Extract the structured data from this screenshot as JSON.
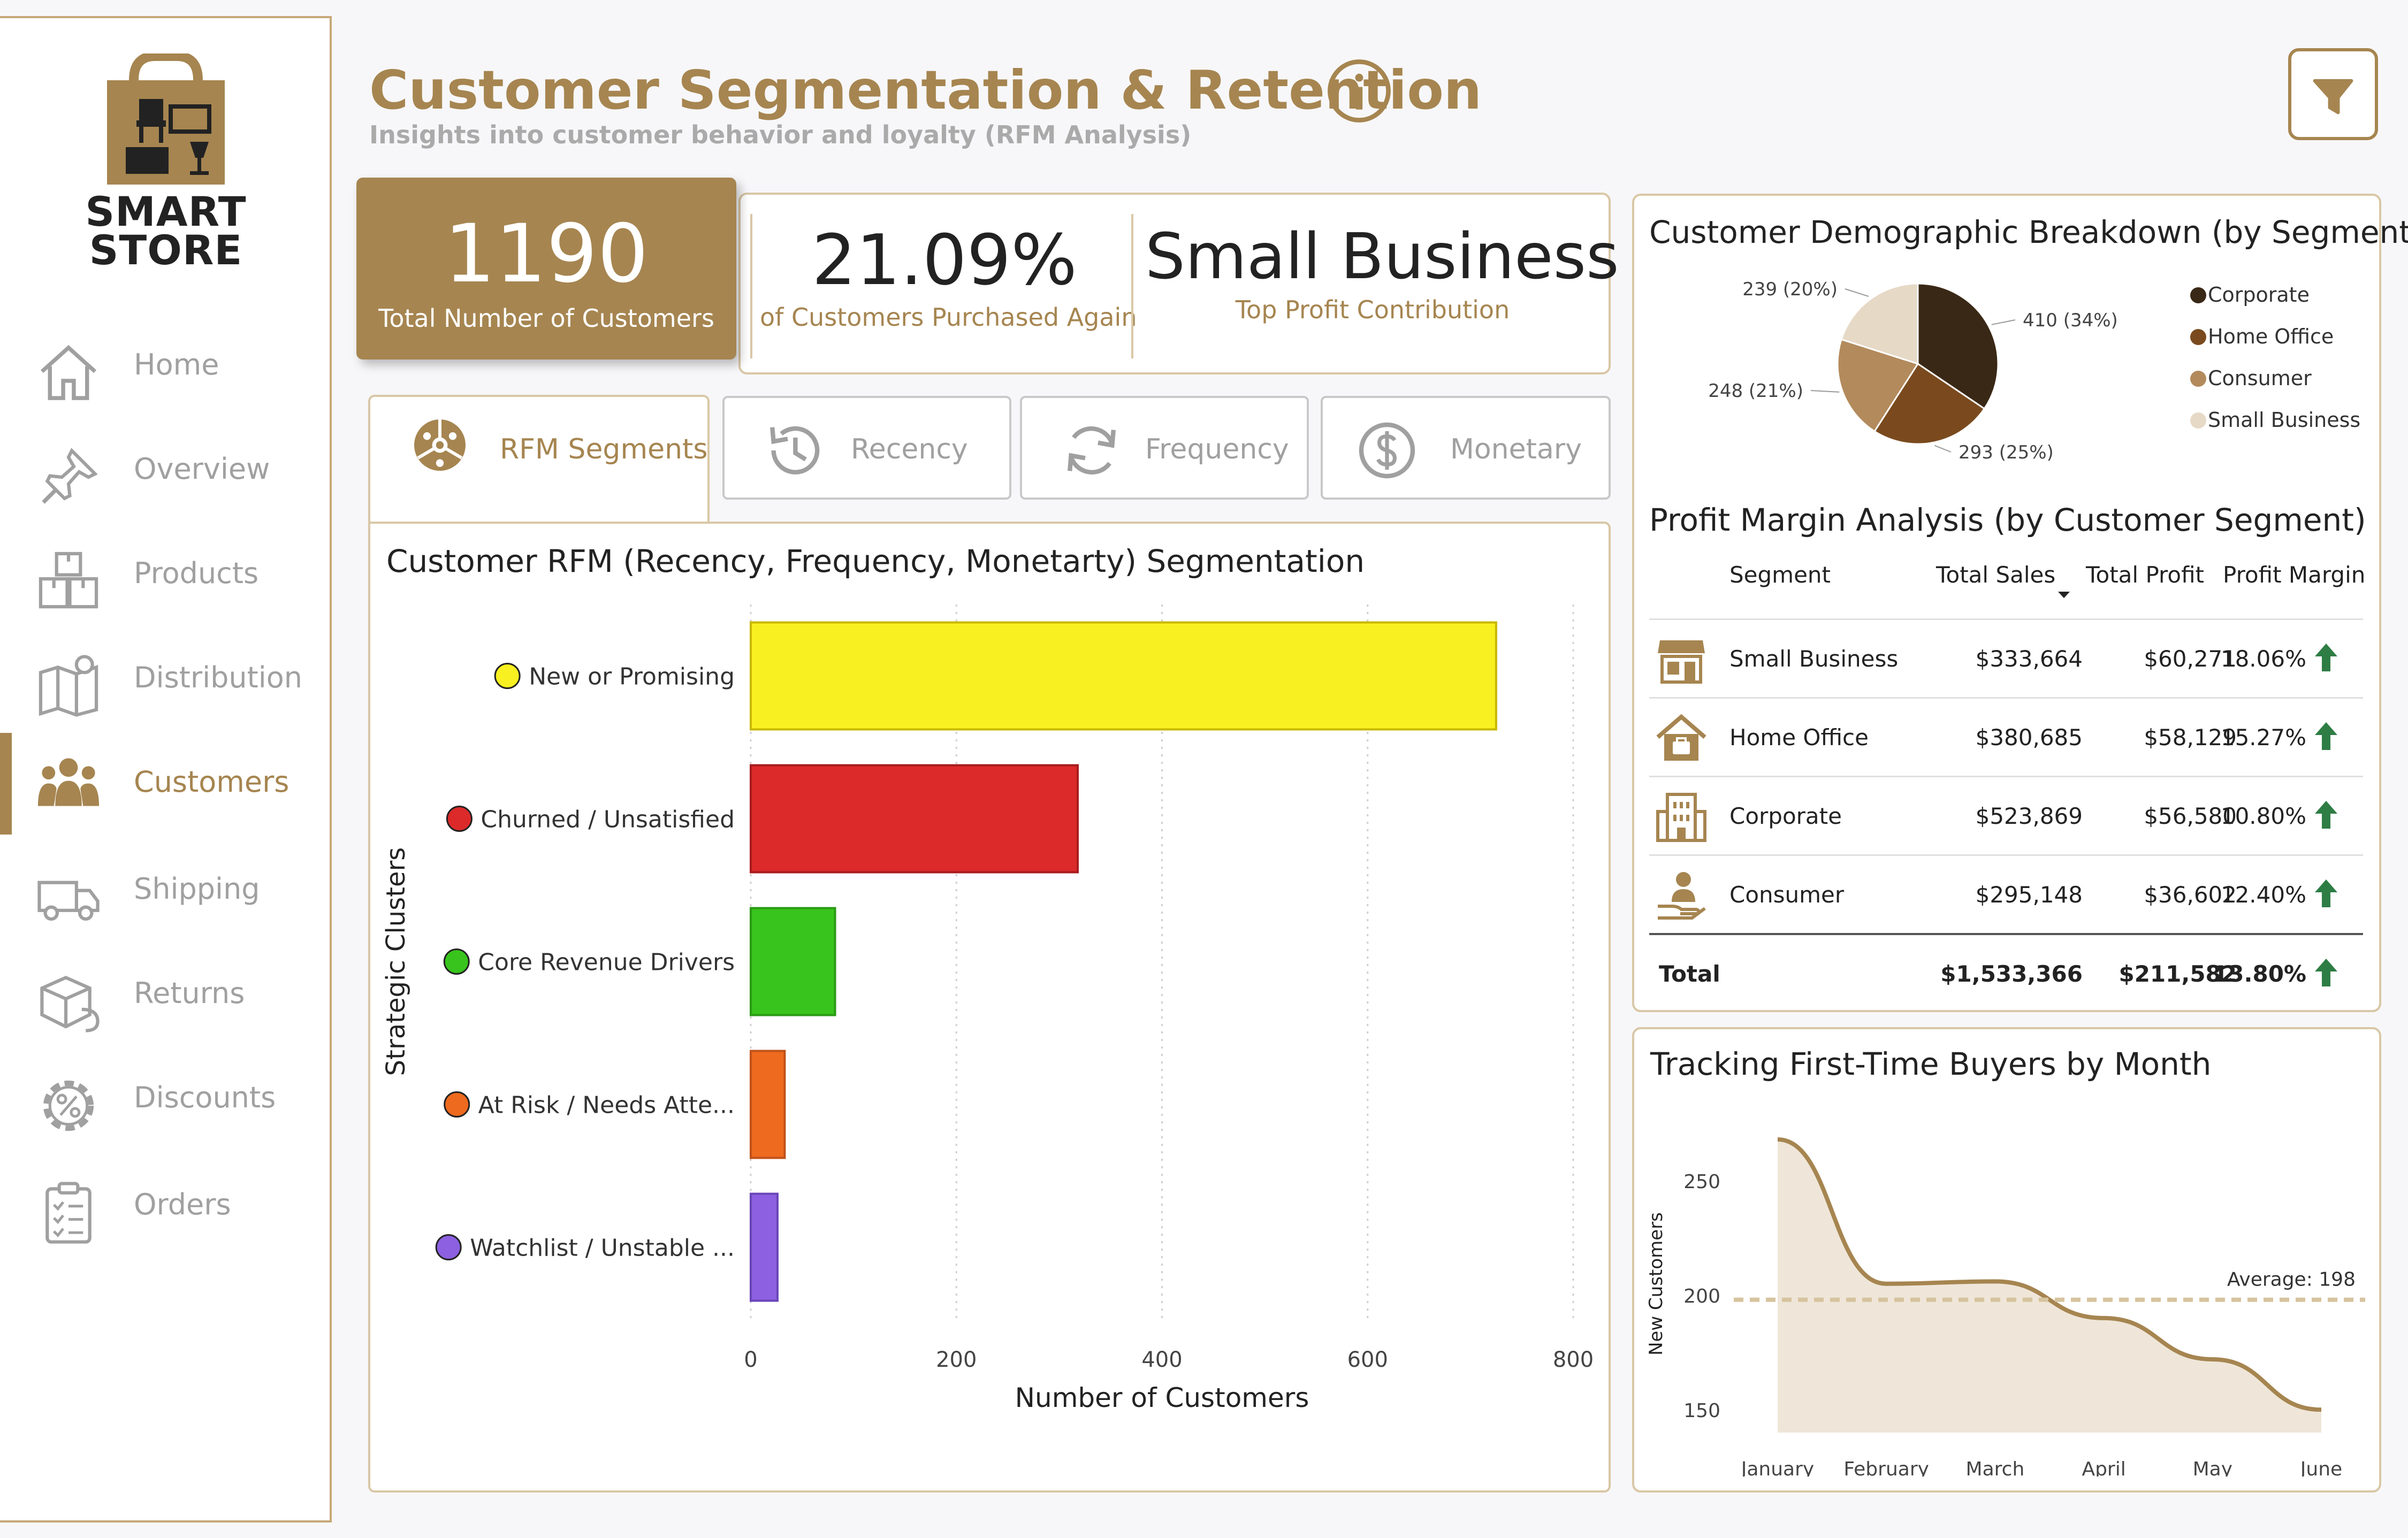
{
  "brand": {
    "name_line1": "SMART",
    "name_line2": "STORE"
  },
  "nav": {
    "items": [
      {
        "label": "Home",
        "icon": "home-icon"
      },
      {
        "label": "Overview",
        "icon": "pin-icon"
      },
      {
        "label": "Products",
        "icon": "boxes-icon"
      },
      {
        "label": "Distribution",
        "icon": "map-icon"
      },
      {
        "label": "Customers",
        "icon": "people-icon",
        "active": true
      },
      {
        "label": "Shipping",
        "icon": "truck-icon"
      },
      {
        "label": "Returns",
        "icon": "return-box-icon"
      },
      {
        "label": "Discounts",
        "icon": "percent-gear-icon"
      },
      {
        "label": "Orders",
        "icon": "clipboard-icon"
      }
    ]
  },
  "header": {
    "title": "Customer Segmentation & Retention",
    "subtitle": "Insights into customer behavior and loyalty (RFM Analysis)"
  },
  "kpis": {
    "total_customers": {
      "value": "1190",
      "label": "Total Number of Customers"
    },
    "repeat_rate": {
      "value": "21.09%",
      "label": "of Customers Purchased Again"
    },
    "top_segment": {
      "value": "Small Business",
      "label": "Top Profit Contribution"
    }
  },
  "tabs": {
    "rfm": "RFM Segments",
    "recency": "Recency",
    "frequency": "Frequency",
    "monetary": "Monetary"
  },
  "colors": {
    "accent": "#a68550",
    "pie": [
      "#3a2816",
      "#7a4a1e",
      "#b38a5c",
      "#e6d9c6"
    ]
  },
  "chart_data": [
    {
      "type": "bar",
      "orientation": "horizontal",
      "title": "Customer RFM (Recency, Frequency, Monetarty) Segmentation",
      "xlabel": "Number of Customers",
      "ylabel": "Strategic Clusters",
      "xlim": [
        0,
        800
      ],
      "xticks": [
        "0",
        "200",
        "400",
        "600",
        "800"
      ],
      "categories": [
        "New or Promising",
        "Churned / Unsatisfied",
        "Core Revenue Drivers",
        "At Risk / Needs Atte...",
        "Watchlist / Unstable ..."
      ],
      "values": [
        725,
        318,
        82,
        33,
        26
      ],
      "bar_colors": [
        "#f8f020",
        "#dc2a2a",
        "#38c41c",
        "#ee6a1e",
        "#8c60e0"
      ],
      "edge_colors": [
        "#c8b800",
        "#a81c1c",
        "#2a9a14",
        "#c0521a",
        "#6a46b8"
      ]
    },
    {
      "type": "pie",
      "title": "Customer Demographic Breakdown (by Segment)",
      "labels": [
        "Corporate",
        "Home Office",
        "Consumer",
        "Small Business"
      ],
      "values": [
        410,
        293,
        248,
        239
      ],
      "slice_labels": [
        "410 (34%)",
        "293 (25%)",
        "248 (21%)",
        "239 (20%)"
      ],
      "legend": [
        "Corporate",
        "Home Office",
        "Consumer",
        "Small Business"
      ]
    },
    {
      "type": "area",
      "title": "Tracking First-Time Buyers by Month",
      "ylabel": "New Customers",
      "x": [
        "January",
        "February",
        "March",
        "April",
        "May",
        "June"
      ],
      "values": [
        268,
        205,
        206,
        190,
        172,
        150
      ],
      "ylim": [
        140,
        275
      ],
      "yticks": [
        "150",
        "200",
        "250"
      ],
      "average": 198,
      "average_label": "Average: 198"
    }
  ],
  "margin_table": {
    "title": "Profit Margin Analysis (by Customer Segment)",
    "headers": {
      "segment": "Segment",
      "sales": "Total Sales",
      "profit": "Total Profit",
      "margin": "Profit Margin"
    },
    "rows": [
      {
        "segment": "Small Business",
        "sales": "$333,664",
        "profit": "$60,271",
        "margin": "18.06%",
        "icon": "storefront-icon"
      },
      {
        "segment": "Home Office",
        "sales": "$380,685",
        "profit": "$58,129",
        "margin": "15.27%",
        "icon": "house-briefcase-icon"
      },
      {
        "segment": "Corporate",
        "sales": "$523,869",
        "profit": "$56,580",
        "margin": "10.80%",
        "icon": "building-icon"
      },
      {
        "segment": "Consumer",
        "sales": "$295,148",
        "profit": "$36,602",
        "margin": "12.40%",
        "icon": "hand-user-icon"
      }
    ],
    "total": {
      "segment": "Total",
      "sales": "$1,533,366",
      "profit": "$211,582",
      "margin": "13.80%"
    }
  }
}
